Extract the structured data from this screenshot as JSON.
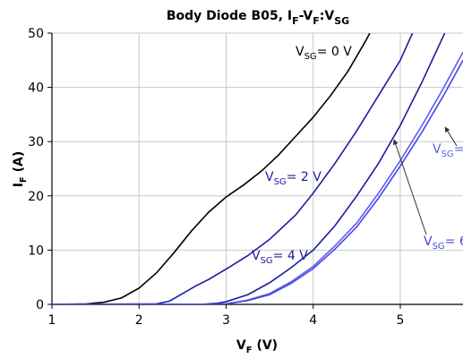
{
  "chart_data": {
    "type": "line",
    "title": [
      {
        "text": "Body Diode B05, I"
      },
      {
        "text": "F",
        "sub": true
      },
      {
        "text": "-V"
      },
      {
        "text": "F",
        "sub": true
      },
      {
        "text": ":V"
      },
      {
        "text": "SG",
        "sub": true
      }
    ],
    "x_label": [
      {
        "text": "V"
      },
      {
        "text": "F",
        "sub": true
      },
      {
        "text": " (V)"
      }
    ],
    "y_label": [
      {
        "text": "I"
      },
      {
        "text": "F",
        "sub": true
      },
      {
        "text": " (A)"
      }
    ],
    "xlim": [
      1,
      5.72
    ],
    "ylim": [
      0,
      50
    ],
    "xticks": [
      1,
      2,
      3,
      4,
      5
    ],
    "yticks": [
      0,
      10,
      20,
      30,
      40,
      50
    ],
    "grid": true,
    "series": [
      {
        "color": "#000000",
        "label": [
          {
            "text": "V"
          },
          {
            "text": "SG",
            "sub": true
          },
          {
            "text": "= 0 V"
          }
        ],
        "x": [
          1.0,
          1.4,
          1.6,
          1.8,
          2.0,
          2.2,
          2.4,
          2.6,
          2.8,
          3.0,
          3.2,
          3.4,
          3.6,
          3.8,
          4.0,
          4.2,
          4.4,
          4.6,
          4.65
        ],
        "values": [
          0,
          0.1,
          0.4,
          1.2,
          3,
          5.8,
          9.5,
          13.5,
          17,
          19.8,
          22,
          24.5,
          27.5,
          31,
          34.5,
          38.5,
          43,
          48.5,
          50
        ]
      },
      {
        "color": "#1c1ca0",
        "label": [
          {
            "text": "V"
          },
          {
            "text": "SG",
            "sub": true
          },
          {
            "text": "= 2 V"
          }
        ],
        "x": [
          1.0,
          2.2,
          2.35,
          2.5,
          2.65,
          2.8,
          3.0,
          3.25,
          3.5,
          3.8,
          4.0,
          4.25,
          4.5,
          4.75,
          5.0,
          5.14
        ],
        "values": [
          0,
          0.1,
          0.6,
          2,
          3.4,
          4.6,
          6.5,
          9,
          12,
          16.5,
          20.5,
          26,
          32,
          38.5,
          45,
          50
        ]
      },
      {
        "color": "#1c1ca0",
        "label": [
          {
            "text": "V"
          },
          {
            "text": "SG",
            "sub": true
          },
          {
            "text": "= 4 V"
          }
        ],
        "x": [
          1.0,
          2.7,
          2.9,
          3.0,
          3.25,
          3.5,
          3.75,
          4.0,
          4.25,
          4.5,
          4.75,
          5.0,
          5.25,
          5.51
        ],
        "values": [
          0,
          0,
          0.2,
          0.5,
          1.8,
          4,
          6.8,
          10,
          14.5,
          20,
          26,
          33,
          41,
          50
        ]
      },
      {
        "color": "#5c5cf0",
        "label": [
          {
            "text": "V"
          },
          {
            "text": "SG",
            "sub": true
          },
          {
            "text": "="
          }
        ],
        "x": [
          1.0,
          2.9,
          3.0,
          3.25,
          3.5,
          3.75,
          4.0,
          4.25,
          4.5,
          4.75,
          5.0,
          5.25,
          5.5,
          5.72
        ],
        "values": [
          0,
          0,
          0.1,
          0.8,
          2,
          4.2,
          7,
          10.8,
          15,
          20.5,
          26.5,
          33,
          40,
          46.5
        ]
      },
      {
        "color": "#4646e6",
        "label": [
          {
            "text": "V"
          },
          {
            "text": "SG",
            "sub": true
          },
          {
            "text": "= 6"
          }
        ],
        "x": [
          1.0,
          2.9,
          3.0,
          3.25,
          3.5,
          3.75,
          4.0,
          4.25,
          4.5,
          4.75,
          5.0,
          5.25,
          5.5,
          5.72
        ],
        "values": [
          0,
          0,
          0.1,
          0.7,
          1.8,
          3.9,
          6.6,
          10.2,
          14.3,
          19.6,
          25.5,
          31.8,
          38.6,
          45
        ]
      }
    ]
  }
}
